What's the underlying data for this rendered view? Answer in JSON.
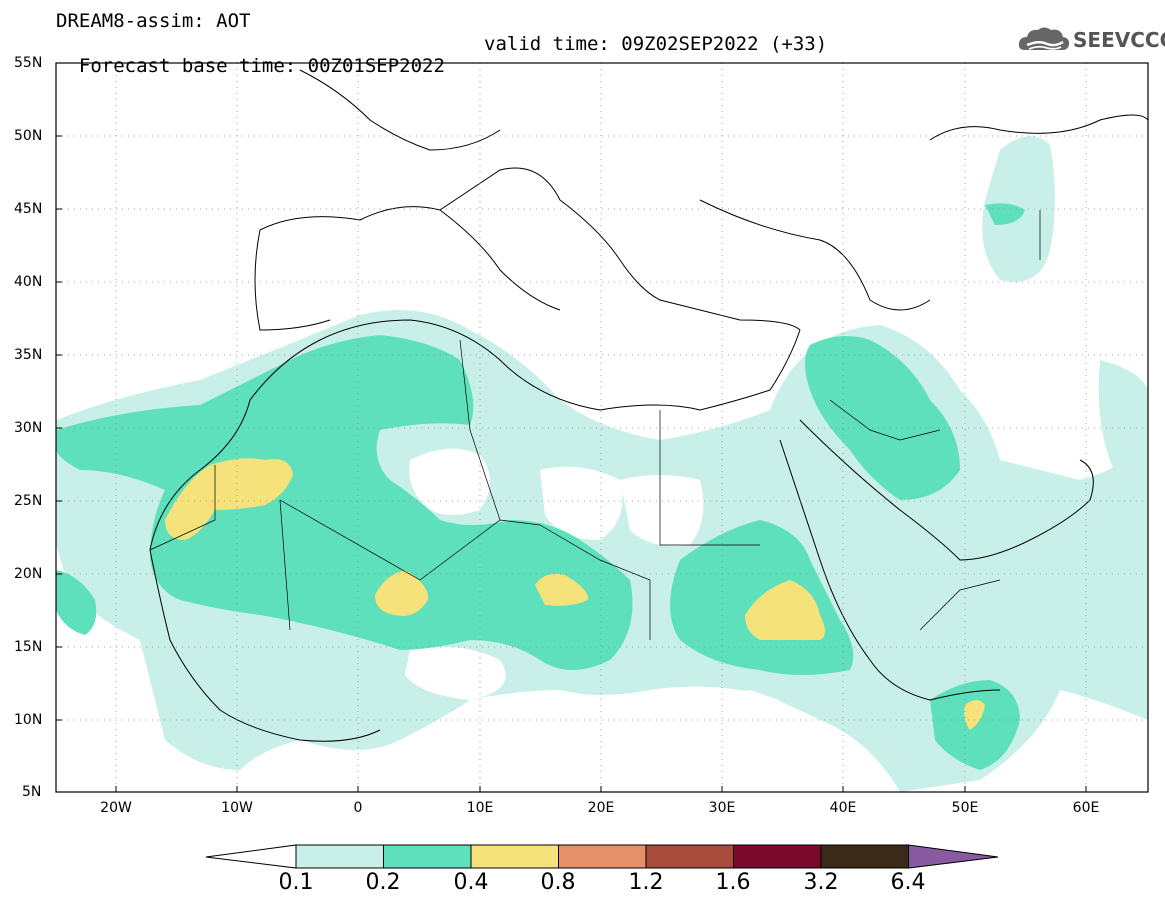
{
  "header": {
    "title": "DREAM8-assim: AOT",
    "forecast_base": "Forecast base time: 00Z01SEP2022",
    "valid_time": "valid time: 09Z02SEP2022 (+33)"
  },
  "logo": {
    "text": "SEEVCCC",
    "icon": "cloud-icon"
  },
  "map": {
    "lon_range": [
      -25,
      65
    ],
    "lat_range": [
      5,
      55
    ],
    "lat_ticks": [
      "55N",
      "50N",
      "45N",
      "40N",
      "35N",
      "30N",
      "25N",
      "20N",
      "15N",
      "10N",
      "5N"
    ],
    "lon_ticks": [
      "20W",
      "10W",
      "0",
      "10E",
      "20E",
      "30E",
      "40E",
      "50E",
      "60E"
    ],
    "grid": "dotted"
  },
  "colorbar": {
    "labels": [
      "0.1",
      "0.2",
      "0.4",
      "0.8",
      "1.2",
      "1.6",
      "3.2",
      "6.4"
    ],
    "colors": [
      "#c8f0e8",
      "#5ee0bc",
      "#f5e27a",
      "#e6906a",
      "#a84a3c",
      "#7a0a2c",
      "#3a2a1a",
      "#8a5aa0"
    ]
  }
}
